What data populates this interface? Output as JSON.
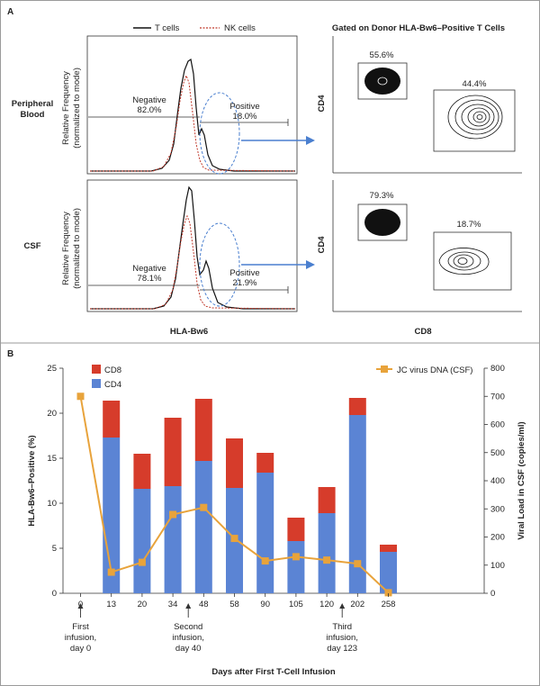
{
  "panelA": {
    "label": "A",
    "legend": {
      "t_cells": "T cells",
      "nk_cells": "NK cells"
    },
    "gated_title": "Gated on Donor HLA-Bw6–Positive T Cells",
    "rows": [
      {
        "label_line1": "Peripheral",
        "label_line2": "Blood",
        "negative": "Negative",
        "negative_pct": "82.0%",
        "positive": "Positive",
        "positive_pct": "18.0%",
        "cd4_single": "55.6%",
        "cd4_cd8": "44.4%"
      },
      {
        "label_line1": "CSF",
        "label_line2": "",
        "negative": "Negative",
        "negative_pct": "78.1%",
        "positive": "Positive",
        "positive_pct": "21.9%",
        "cd4_single": "79.3%",
        "cd4_cd8": "18.7%"
      }
    ],
    "yaxis_line1": "Relative Frequency",
    "yaxis_line2": "(normalized to mode)",
    "xaxis": "HLA-Bw6",
    "dot_y": "CD4",
    "dot_x": "CD8"
  },
  "colors": {
    "bar_cd8": "#d63c2b",
    "bar_cd4": "#5b84d4",
    "line": "#e8a33b",
    "arrow": "#4a7fcf"
  },
  "chart_data": {
    "type": "bar",
    "label": "B",
    "categories": [
      "0",
      "13",
      "20",
      "34",
      "48",
      "58",
      "90",
      "105",
      "120",
      "202",
      "258"
    ],
    "series": [
      {
        "name": "CD4",
        "values": [
          0,
          17.3,
          11.6,
          11.9,
          14.7,
          11.7,
          13.4,
          5.8,
          8.9,
          19.8,
          4.6
        ]
      },
      {
        "name": "CD8",
        "values": [
          0,
          4.1,
          3.9,
          7.6,
          6.9,
          5.5,
          2.2,
          2.6,
          2.9,
          1.9,
          0.8
        ]
      },
      {
        "name": "JC virus DNA (CSF)",
        "type": "line",
        "axis": "right",
        "values": [
          700,
          75,
          110,
          280,
          305,
          195,
          115,
          130,
          118,
          105,
          2
        ]
      }
    ],
    "ylabel": "HLA-Bw6–Positive (%)",
    "y2label": "Viral Load in CSF (copies/ml)",
    "xlabel": "Days after First T-Cell Infusion",
    "ylim": [
      0,
      25
    ],
    "y2lim": [
      0,
      800
    ],
    "yticks": [
      "0",
      "5",
      "10",
      "15",
      "20",
      "25"
    ],
    "y2ticks": [
      "0",
      "100",
      "200",
      "300",
      "400",
      "500",
      "600",
      "700",
      "800"
    ],
    "stacked": true,
    "legend_position": "top-left and top-right",
    "annotations": [
      {
        "category": "0",
        "line1": "First",
        "line2": "infusion,",
        "line3": "day 0"
      },
      {
        "category_after": "34",
        "line1": "Second",
        "line2": "infusion,",
        "line3": "day 40"
      },
      {
        "category_after": "120",
        "line1": "Third",
        "line2": "infusion,",
        "line3": "day 123"
      }
    ]
  }
}
